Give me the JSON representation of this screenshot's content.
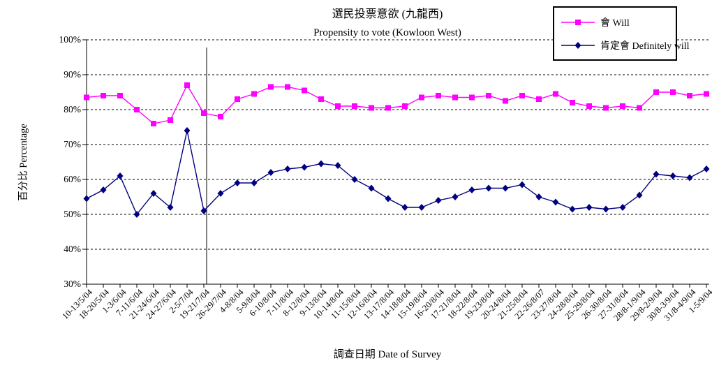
{
  "chart_data": {
    "type": "line",
    "title_zh": "選民投票意欲 (九龍西)",
    "title_en": "Propensity to vote (Kowloon West)",
    "xlabel": "調查日期 Date of Survey",
    "ylabel": "百分比 Percentage",
    "ylim": [
      30,
      100
    ],
    "ytick_step": 10,
    "ytick_labels": [
      "100%",
      "90%",
      "80%",
      "70%",
      "60%",
      "50%",
      "40%",
      "30%"
    ],
    "grid": "horizontal-dashed",
    "legend_position": "top-right",
    "legend_border": true,
    "background_color": "#FFFFFF",
    "axis_color": "#000000",
    "vline_after_category": "19-21/7/04",
    "categories": [
      "10-13/5/04",
      "18-20/5/04",
      "1-3/6/04",
      "7-11/6/04",
      "21-24/6/04",
      "24-27/6/04",
      "2-5/7/04",
      "19-21/7/04",
      "26-29/7/04",
      "4-8/8/04",
      "5-9/8/04",
      "6-10/8/04",
      "7-11/8/04",
      "8-12/8/04",
      "9-13/8/04",
      "10-14/8/04",
      "11-15/8/04",
      "12-16/8/04",
      "13-17/8/04",
      "14-18/8/04",
      "15-19/8/04",
      "16-20/8/04",
      "17-21/8/04",
      "18-22/8/04",
      "19-23/8/04",
      "20-24/8/04",
      "21-25/8/04",
      "22-26/8/07",
      "23-27/8/04",
      "24-28/8/04",
      "25-29/8/04",
      "26-30/8/04",
      "27-31/8/04",
      "28/8-1/9/04",
      "29/8-2/9/04",
      "30/8-3/9/04",
      "31/8-4/9/04",
      "1-5/9/04"
    ],
    "series": [
      {
        "name": "會 Will",
        "color": "#FF00FF",
        "marker": "square",
        "values": [
          83.5,
          84,
          84,
          80,
          76,
          77,
          87,
          79,
          78,
          83,
          84.5,
          86.5,
          86.5,
          85.5,
          83,
          81,
          81,
          80.5,
          80.5,
          81,
          83.5,
          84,
          83.5,
          83.5,
          84,
          82.5,
          84,
          83,
          84.5,
          82,
          81,
          80.5,
          81,
          80.5,
          85,
          85,
          84,
          84.5
        ]
      },
      {
        "name": "肯定會 Definitely will",
        "color": "#000080",
        "marker": "diamond",
        "values": [
          54.5,
          57,
          61,
          50,
          56,
          52,
          74,
          51,
          56,
          59,
          59,
          62,
          63,
          63.5,
          64.5,
          64,
          60,
          57.5,
          54.5,
          52,
          52,
          54,
          55,
          57,
          57.5,
          57.5,
          58.5,
          55,
          53.5,
          51.5,
          52,
          51.5,
          52,
          55.5,
          61.5,
          61,
          60.5,
          63
        ]
      }
    ]
  }
}
